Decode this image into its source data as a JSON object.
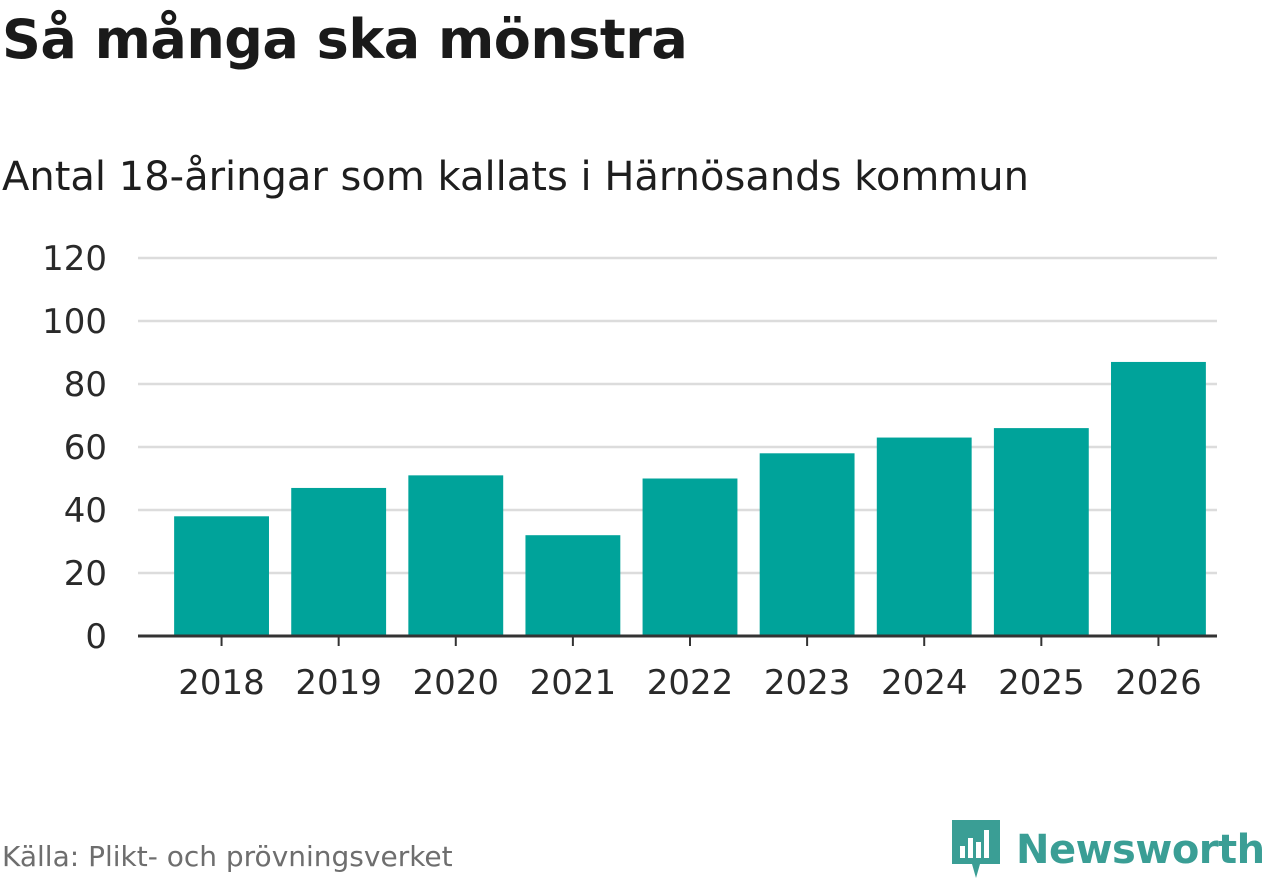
{
  "header": {
    "title": "Så många ska mönstra",
    "subtitle": "Antal 18-åringar som kallats i Härnösands kommun"
  },
  "footer": {
    "source": "Källa: Plikt- och prövningsverket",
    "brand": "Newsworthy",
    "brand_icon": "bar-chart-logo-icon"
  },
  "colors": {
    "bar": "#00a39a",
    "brand": "#3a9e95",
    "grid": "#dcdcdc",
    "axis": "#333333",
    "text": "#1a1a1a"
  },
  "chart_data": {
    "type": "bar",
    "categories": [
      "2018",
      "2019",
      "2020",
      "2021",
      "2022",
      "2023",
      "2024",
      "2025",
      "2026"
    ],
    "values": [
      38,
      47,
      51,
      32,
      50,
      58,
      63,
      66,
      87
    ],
    "yticks": [
      0,
      20,
      40,
      60,
      80,
      100,
      120
    ],
    "ylim": [
      0,
      120
    ],
    "grid": true,
    "legend": "none"
  }
}
